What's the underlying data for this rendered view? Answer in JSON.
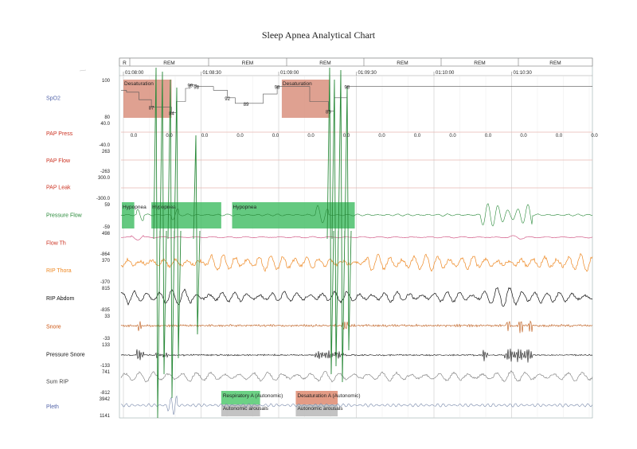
{
  "chart_data": {
    "type": "line",
    "title": "Sleep Apnea Analytical Chart",
    "stages": [
      "R",
      "REM",
      "REM",
      "REM",
      "REM",
      "REM",
      "REM"
    ],
    "time_ticks": [
      "01:08:00",
      "01:08:30",
      "01:09:00",
      "01:09:30",
      "01:10:00",
      "01:10:30"
    ],
    "colors": {
      "spo2": "#5566aa",
      "pap": "#cc3322",
      "green": "#2a8a3a",
      "thorax": "#ee8822",
      "black": "#111111",
      "snore": "#bb5511",
      "gray": "#555555",
      "pink": "#cc4477",
      "desat": "#d9907e",
      "hypo": "#49c06a",
      "resp": "#5ccc78"
    },
    "channels": [
      {
        "name": "SpO2",
        "color": "#5566aa",
        "max": "100",
        "min": "80"
      },
      {
        "name": "PAP Press",
        "color": "#cc3322",
        "max": "40.0",
        "min": "-40.0"
      },
      {
        "name": "PAP Flow",
        "color": "#cc3322",
        "max": "263",
        "min": "-263"
      },
      {
        "name": "PAP Leak",
        "color": "#cc3322",
        "max": "300.0",
        "min": "-300.0"
      },
      {
        "name": "Pressure Flow",
        "color": "#2a8a3a",
        "max": "59",
        "min": "-59"
      },
      {
        "name": "Flow Th",
        "color": "#cc3322",
        "max": "498",
        "min": "-864"
      },
      {
        "name": "RIP Thora",
        "color": "#ee8822",
        "max": "370",
        "min": "-370"
      },
      {
        "name": "RIP Abdom",
        "color": "#111111",
        "max": "815",
        "min": "-835"
      },
      {
        "name": "Snore",
        "color": "#cc5511",
        "max": "33",
        "min": "-33"
      },
      {
        "name": "Pressure Snore",
        "color": "#111111",
        "max": "133",
        "min": "-133"
      },
      {
        "name": "Sum RIP",
        "color": "#444444",
        "max": "741",
        "min": "-812"
      },
      {
        "name": "Pleth",
        "color": "#5566aa",
        "max": "3942",
        "min": "1141"
      }
    ],
    "spo2_values": [
      {
        "label": "87",
        "t": 0.18
      },
      {
        "label": "84",
        "t": 0.31
      },
      {
        "label": "99",
        "t": 0.43
      },
      {
        "label": "98",
        "t": 0.47
      },
      {
        "label": "92",
        "t": 0.67
      },
      {
        "label": "89",
        "t": 0.79
      },
      {
        "label": "98",
        "t": 0.99
      },
      {
        "label": "85",
        "t": 1.32
      },
      {
        "label": "98",
        "t": 1.44
      }
    ],
    "pap_press_values": [
      "0.0",
      "0.0",
      "0.0",
      "0.0",
      "0.0",
      "0.0",
      "0.0",
      "0.0",
      "0.0",
      "0.0",
      "0.0",
      "0.0",
      "0.0",
      "0.0"
    ],
    "events": [
      {
        "label": "Desaturation",
        "kind": "desat",
        "t0": 0.0,
        "t1": 0.31
      },
      {
        "label": "Desaturation",
        "kind": "desat",
        "t0": 1.02,
        "t1": 1.33
      },
      {
        "label": "Hypopnea",
        "kind": "hypo",
        "t0": -0.01,
        "t1": 0.07
      },
      {
        "label": "Hypopnea",
        "kind": "hypo",
        "t0": 0.18,
        "t1": 0.63
      },
      {
        "label": "Hypopnea",
        "kind": "hypo",
        "t0": 0.7,
        "t1": 1.49
      }
    ],
    "scored_events": [
      {
        "label": "Respiratory A (Autonomic)",
        "sub": "Autonomic arousals",
        "t0": 0.63,
        "t1": 0.88,
        "color": "#5ccc78"
      },
      {
        "label": "Desaturation A (Autonomic)",
        "sub": "Autonomic arousals",
        "t0": 1.11,
        "t1": 1.38,
        "color": "#e09078"
      }
    ]
  }
}
